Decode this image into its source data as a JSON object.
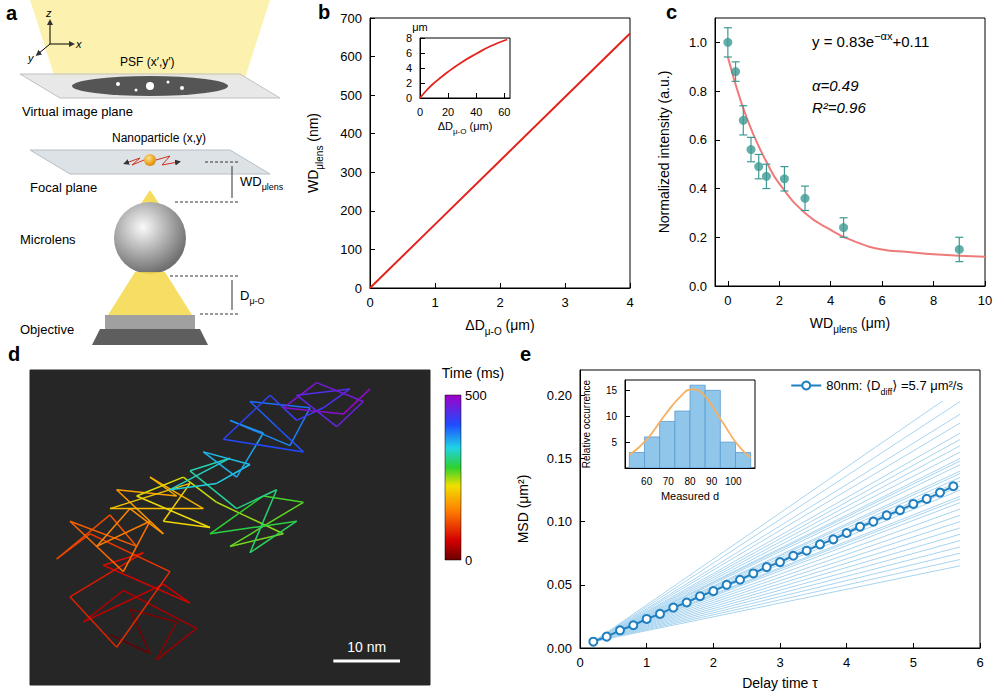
{
  "diagram": {
    "panel": "a",
    "axes": [
      "z",
      "x",
      "y"
    ],
    "psf": "PSF (x′,y′)",
    "virtual_plane": "Virtual image plane",
    "particle": "Nanoparticle (x,y)",
    "focal_plane": "Focal plane",
    "wd": {
      "base": "WD",
      "sub": "μlens"
    },
    "microlens": "Microlens",
    "distance": {
      "base": "D",
      "sub": "μ-O"
    },
    "objective": "Objective"
  },
  "chart_data": [
    {
      "panel": "b",
      "type": "line",
      "x_label": {
        "base": "ΔD",
        "sub": "μ-O",
        "suffix": " (μm)"
      },
      "y_label": {
        "base": "WD",
        "sub": "μlens",
        "suffix": " (nm)"
      },
      "x": [
        0,
        1,
        2,
        3,
        4
      ],
      "values": [
        0,
        165,
        330,
        495,
        660
      ],
      "color": "#e3241e",
      "xlim": [
        0,
        4
      ],
      "xticks": [
        0,
        1,
        2,
        3,
        4
      ],
      "ylim": [
        0,
        700
      ],
      "yticks": [
        0,
        100,
        200,
        300,
        400,
        500,
        600,
        700
      ],
      "inset": {
        "type": "line",
        "x_label": {
          "base": "ΔD",
          "sub": "μ-O",
          "suffix": " (μm)"
        },
        "y_label": "μm",
        "x": [
          0,
          5,
          10,
          20,
          30,
          40,
          50,
          62
        ],
        "values": [
          0,
          1.1,
          2.0,
          3.5,
          4.8,
          5.9,
          6.9,
          7.8
        ],
        "color": "#e3241e",
        "xlim": [
          0,
          64
        ],
        "xticks": [
          0,
          20,
          40,
          60
        ],
        "ylim": [
          0,
          8
        ],
        "yticks": [
          0,
          2,
          4,
          6,
          8
        ]
      }
    },
    {
      "panel": "c",
      "type": "scatter",
      "marker": "circle",
      "x_label": {
        "base": "WD",
        "sub": "μlens",
        "suffix": " (μm)"
      },
      "y_label": "Normalized intensity (a.u.)",
      "x": [
        0,
        0.3,
        0.6,
        0.9,
        1.2,
        1.5,
        2.2,
        3,
        4.5,
        9
      ],
      "values": [
        1.0,
        0.88,
        0.68,
        0.56,
        0.49,
        0.45,
        0.44,
        0.36,
        0.24,
        0.15
      ],
      "errors": [
        0.06,
        0.04,
        0.06,
        0.05,
        0.05,
        0.05,
        0.05,
        0.05,
        0.04,
        0.05
      ],
      "color": "#3c9a93",
      "fit": {
        "type": "line",
        "color": "#f07a7a",
        "x": [
          0,
          0.5,
          1,
          1.5,
          2,
          3,
          4,
          5,
          6,
          7,
          8,
          10
        ],
        "values": [
          0.94,
          0.76,
          0.62,
          0.51,
          0.42,
          0.3,
          0.23,
          0.18,
          0.15,
          0.14,
          0.13,
          0.12
        ]
      },
      "annotations": [
        {
          "base": "y = 0.83e",
          "sup": "−αx",
          "suffix": "+0.11"
        },
        "α=0.49",
        "R²=0.96"
      ],
      "xlim": [
        -0.5,
        10
      ],
      "xticks": [
        0,
        2,
        4,
        6,
        8,
        10
      ],
      "ylim": [
        0,
        1.1
      ],
      "yticks": [
        {
          "value": 0,
          "label": "0.0"
        },
        {
          "value": 0.2,
          "label": "0.2"
        },
        {
          "value": 0.4,
          "label": "0.4"
        },
        {
          "value": 0.6,
          "label": "0.6"
        },
        {
          "value": 0.8,
          "label": "0.8"
        },
        {
          "value": 1,
          "label": "1.0"
        }
      ]
    },
    {
      "panel": "d",
      "type": "line",
      "tick_labels": false,
      "x": [
        12,
        18,
        15,
        22,
        19,
        25,
        14,
        8,
        20,
        24,
        11,
        17,
        6,
        13,
        21,
        9,
        4,
        12,
        16,
        6,
        14,
        18,
        10,
        15,
        20,
        13,
        22,
        18,
        26,
        12,
        24,
        20,
        27,
        16,
        23,
        28,
        32,
        38,
        30,
        41,
        35,
        27,
        40,
        33,
        37,
        31,
        24,
        30,
        21,
        28,
        33,
        26,
        31,
        35,
        30,
        39,
        42,
        33,
        37,
        41,
        29,
        36,
        40,
        44,
        48,
        40,
        46,
        50,
        43,
        38,
        47,
        51
      ],
      "values": [
        8,
        5,
        12,
        10,
        4,
        9,
        15,
        10,
        16,
        13,
        19,
        21,
        14,
        6,
        18,
        24,
        20,
        27,
        22,
        26,
        18,
        26,
        22,
        28,
        24,
        31,
        30,
        33,
        28,
        28,
        32,
        26,
        25,
        30,
        33,
        29,
        27,
        24,
        22,
        29,
        30,
        24,
        26,
        21,
        31,
        28,
        34,
        36,
        31,
        32,
        35,
        37,
        33,
        40,
        42,
        38,
        44,
        45,
        41,
        37,
        39,
        46,
        42,
        44,
        47,
        46,
        41,
        45,
        48,
        44,
        43,
        47
      ],
      "time": [
        0,
        7,
        14,
        21,
        28,
        35,
        42,
        49,
        56,
        63,
        70,
        77,
        84,
        91,
        98,
        105,
        112,
        119,
        126,
        133,
        140,
        147,
        154,
        161,
        168,
        175,
        182,
        189,
        196,
        203,
        210,
        217,
        224,
        231,
        238,
        245,
        252,
        259,
        266,
        273,
        280,
        287,
        294,
        301,
        308,
        315,
        322,
        329,
        336,
        343,
        350,
        357,
        364,
        371,
        378,
        385,
        392,
        399,
        406,
        413,
        420,
        427,
        434,
        441,
        448,
        455,
        462,
        469,
        476,
        483,
        490,
        497
      ],
      "xlim": [
        0,
        60
      ],
      "ylim": [
        0,
        50
      ],
      "colorbar": {
        "label": "Time (ms)",
        "range": [
          0,
          500
        ],
        "ticks": [
          0,
          500
        ]
      },
      "scale_bar": {
        "length": 10,
        "label": "10 nm"
      }
    },
    {
      "panel": "e",
      "type": "line",
      "legend": "upper right",
      "x_label": "Delay time τ",
      "y_label": "MSD (μm²)",
      "series": [
        {
          "name": {
            "base": "80nm: ⟨D",
            "sub": "diff",
            "suffix": "⟩ =5.7 μm²/s"
          },
          "color": "#1f7fc0",
          "marker": "open_circle",
          "x": [
            0.2,
            0.4,
            0.6,
            0.8,
            1.0,
            1.2,
            1.4,
            1.6,
            1.8,
            2.0,
            2.2,
            2.4,
            2.6,
            2.8,
            3.0,
            3.2,
            3.4,
            3.6,
            3.8,
            4.0,
            4.2,
            4.4,
            4.6,
            4.8,
            5.0,
            5.2,
            5.4,
            5.6
          ],
          "values": [
            0.005,
            0.009,
            0.014,
            0.018,
            0.023,
            0.027,
            0.032,
            0.036,
            0.041,
            0.045,
            0.05,
            0.054,
            0.059,
            0.064,
            0.068,
            0.073,
            0.077,
            0.082,
            0.086,
            0.091,
            0.096,
            0.1,
            0.105,
            0.109,
            0.114,
            0.118,
            0.123,
            0.128
          ]
        }
      ],
      "tracks": {
        "color": "#a8d4f0",
        "x": [
          0.2,
          5.7
        ],
        "values": [
          [
            0.005,
            0.205
          ],
          [
            0.005,
            0.195
          ],
          [
            0.005,
            0.185
          ],
          [
            0.005,
            0.178
          ],
          [
            0.005,
            0.17
          ],
          [
            0.005,
            0.165
          ],
          [
            0.005,
            0.16
          ],
          [
            0.005,
            0.155
          ],
          [
            0.005,
            0.15
          ],
          [
            0.005,
            0.148
          ],
          [
            0.005,
            0.145
          ],
          [
            0.005,
            0.14
          ],
          [
            0.005,
            0.138
          ],
          [
            0.005,
            0.135
          ],
          [
            0.005,
            0.132
          ],
          [
            0.005,
            0.128
          ],
          [
            0.005,
            0.125
          ],
          [
            0.005,
            0.12
          ],
          [
            0.005,
            0.118
          ],
          [
            0.005,
            0.115
          ],
          [
            0.005,
            0.11
          ],
          [
            0.005,
            0.105
          ],
          [
            0.005,
            0.1
          ],
          [
            0.005,
            0.095
          ],
          [
            0.005,
            0.09
          ],
          [
            0.005,
            0.085
          ],
          [
            0.005,
            0.08
          ],
          [
            0.005,
            0.075
          ],
          [
            0.005,
            0.07
          ],
          [
            0.005,
            0.065
          ]
        ]
      },
      "xlim": [
        0,
        6
      ],
      "xticks": [
        0,
        1,
        2,
        3,
        4,
        5,
        6
      ],
      "ylim": [
        0,
        0.22
      ],
      "yticks": [
        {
          "value": 0,
          "label": "0.00"
        },
        {
          "value": 0.05,
          "label": "0.05"
        },
        {
          "value": 0.1,
          "label": "0.10"
        },
        {
          "value": 0.15,
          "label": "0.15"
        },
        {
          "value": 0.2,
          "label": "0.20"
        }
      ],
      "inset": {
        "type": "histogram",
        "x_label": "Measured d",
        "y_label": "Relative occurrence",
        "bins": [
          52,
          59,
          66,
          73,
          80,
          87,
          94,
          101,
          108
        ],
        "counts": [
          3,
          6,
          9,
          11,
          16,
          15,
          5,
          3
        ],
        "color": "#8fc6ea",
        "fit": {
          "type": "line",
          "color": "#f5b064",
          "x": [
            52,
            60,
            68,
            76,
            81,
            86,
            94,
            102,
            108
          ],
          "values": [
            2.5,
            5.5,
            10,
            14,
            15.2,
            14.3,
            9.5,
            4.5,
            2
          ]
        },
        "xlim": [
          50,
          110
        ],
        "xticks": [
          60,
          70,
          80,
          90,
          100
        ],
        "ylim": [
          0,
          17
        ],
        "yticks": [
          5,
          10,
          15
        ]
      }
    }
  ]
}
